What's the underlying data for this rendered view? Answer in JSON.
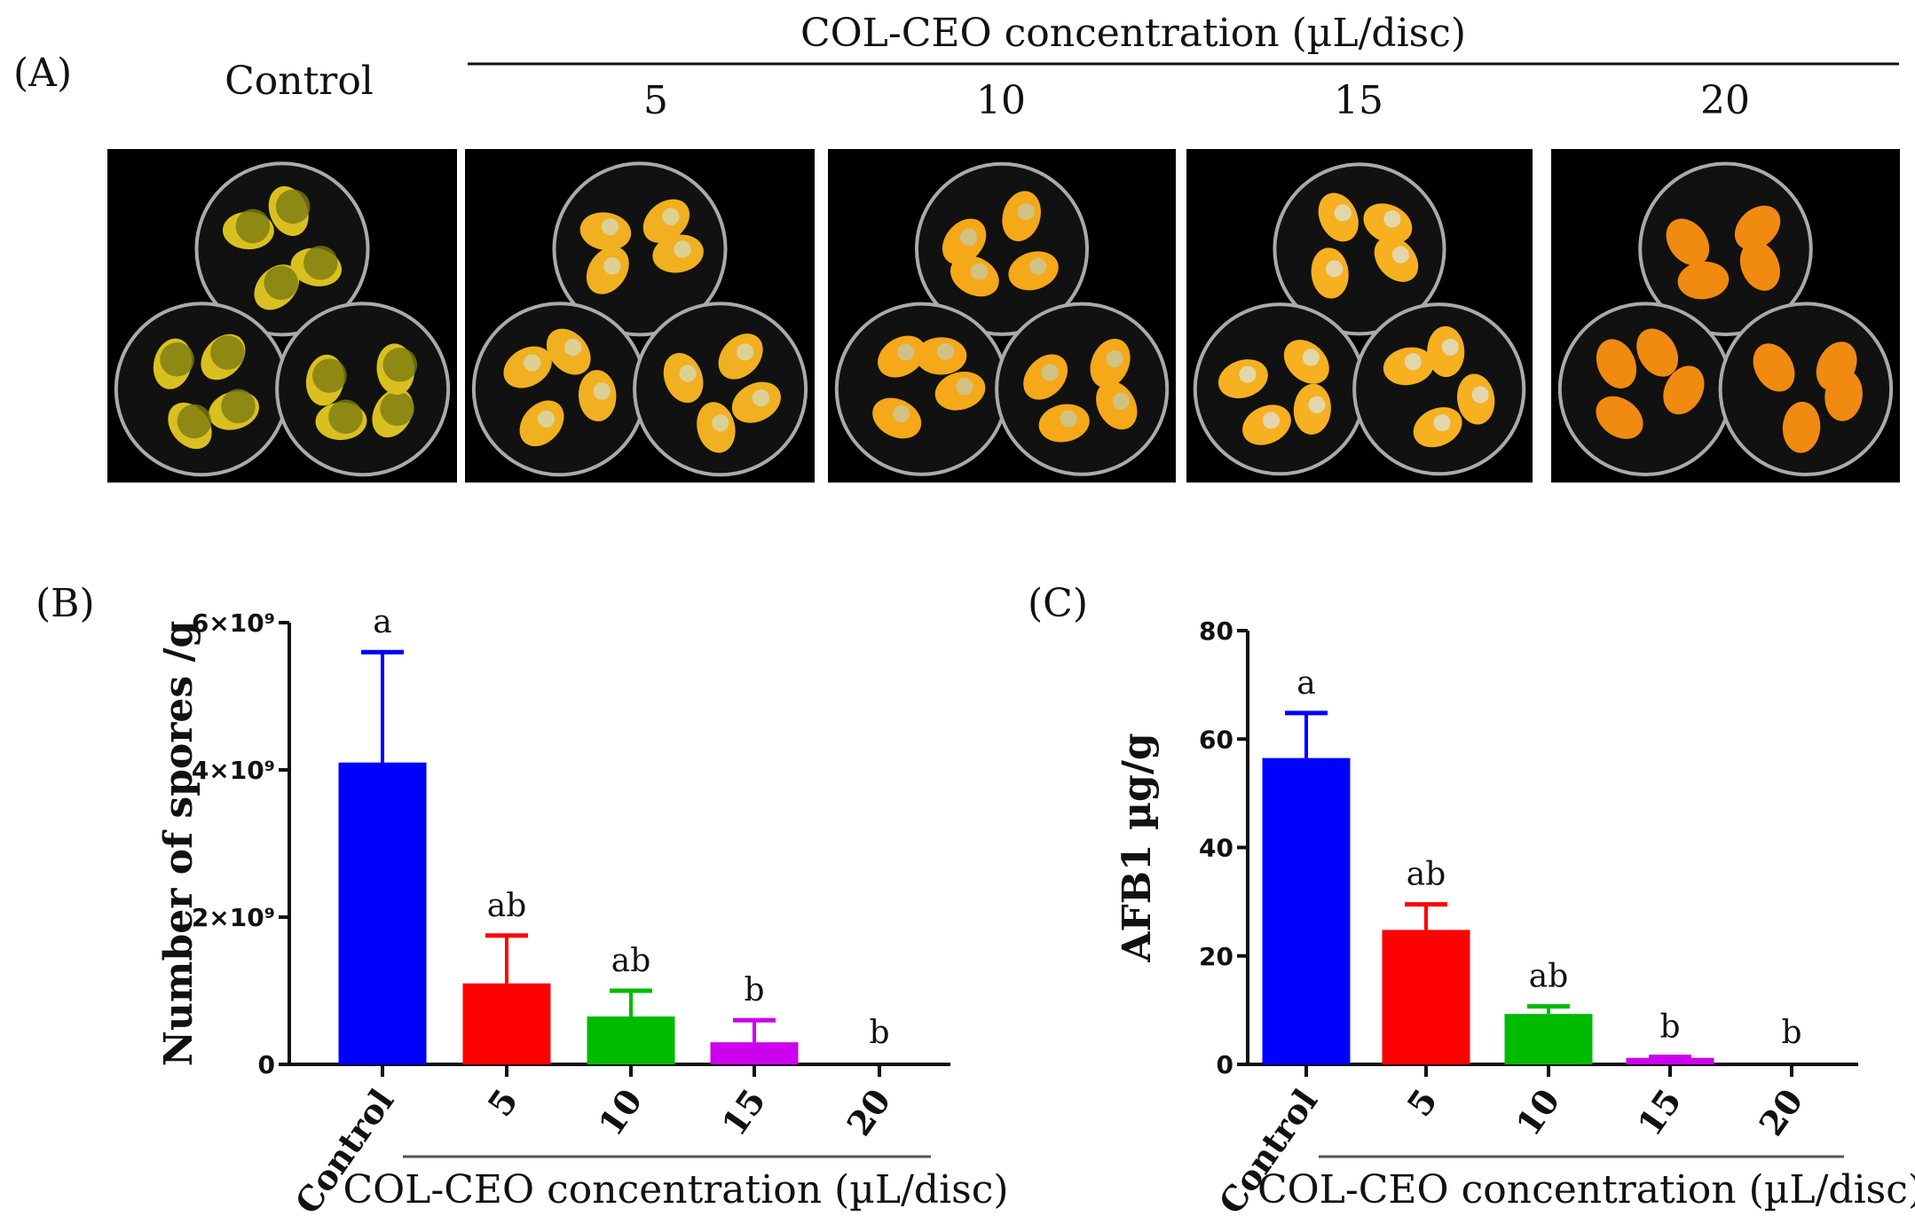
{
  "panel_a": {
    "label": "(A)",
    "header": "COL-CEO concentration (µL/disc)",
    "columns": [
      "Control",
      "5",
      "10",
      "15",
      "20"
    ]
  },
  "chart_data": [
    {
      "panel_label": "(B)",
      "type": "bar",
      "categories": [
        "Control",
        "5",
        "10",
        "15",
        "20"
      ],
      "values": [
        4100000000.0,
        1100000000.0,
        650000000.0,
        300000000.0,
        0
      ],
      "error_upper": [
        5600000000.0,
        1750000000.0,
        1000000000.0,
        600000000.0,
        0
      ],
      "significance": [
        "a",
        "ab",
        "ab",
        "b",
        "b"
      ],
      "colors": [
        "#0000ff",
        "#ff0000",
        "#00bb00",
        "#cc00ee",
        "#000000"
      ],
      "ylabel": "Number of spores /g",
      "xlabel": "COL-CEO concentration (µL/disc)",
      "ylim": [
        0,
        6000000000.0
      ],
      "yticks": [
        0,
        2000000000.0,
        4000000000.0,
        6000000000.0
      ],
      "ytick_labels": [
        "0",
        "2×10⁹",
        "4×10⁹",
        "6×10⁹"
      ],
      "grid": false
    },
    {
      "panel_label": "(C)",
      "type": "bar",
      "categories": [
        "Control",
        "5",
        "10",
        "15",
        "20"
      ],
      "values": [
        56.5,
        24.8,
        9.3,
        1.2,
        0
      ],
      "error_upper": [
        64.8,
        29.5,
        10.7,
        1.4,
        0
      ],
      "significance": [
        "a",
        "ab",
        "ab",
        "b",
        "b"
      ],
      "colors": [
        "#0000ff",
        "#ff0000",
        "#00bb00",
        "#cc00ee",
        "#000000"
      ],
      "ylabel": "AFB1 µg/g",
      "xlabel": "COL-CEO concentration (µL/disc)",
      "ylim": [
        0,
        80
      ],
      "yticks": [
        0,
        20,
        40,
        60,
        80
      ],
      "ytick_labels": [
        "0",
        "20",
        "40",
        "60",
        "80"
      ],
      "grid": false
    }
  ]
}
